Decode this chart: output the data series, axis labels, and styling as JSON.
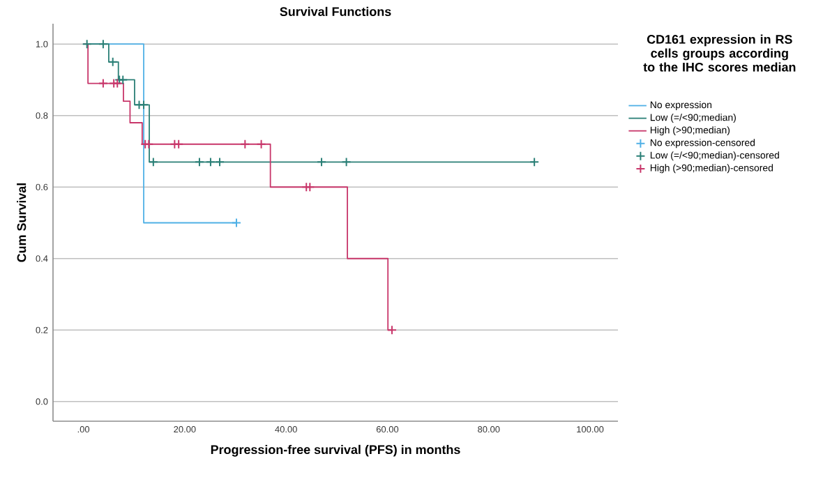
{
  "chart_data": {
    "type": "step",
    "title": "Survival Functions",
    "xlabel": "Progression-free survival (PFS) in months",
    "ylabel": "Cum Survival",
    "legend_title": "CD161 expression in RS cells groups according to the IHC scores median",
    "xlim": [
      -6,
      105.5
    ],
    "ylim": [
      -0.055,
      1.057
    ],
    "xticks": [
      {
        "value": 0,
        "label": ".00"
      },
      {
        "value": 20,
        "label": "20.00"
      },
      {
        "value": 40,
        "label": "40.00"
      },
      {
        "value": 60,
        "label": "60.00"
      },
      {
        "value": 80,
        "label": "80.00"
      },
      {
        "value": 100,
        "label": "100.00"
      }
    ],
    "yticks": [
      {
        "value": 0,
        "label": "0.0"
      },
      {
        "value": 0.2,
        "label": "0.2"
      },
      {
        "value": 0.4,
        "label": "0.4"
      },
      {
        "value": 0.6,
        "label": "0.6"
      },
      {
        "value": 0.8,
        "label": "0.8"
      },
      {
        "value": 1,
        "label": "1.0"
      }
    ],
    "grid": "y",
    "legend": "right",
    "series": [
      {
        "name": "No expression",
        "color": "#4fb0e6",
        "x": [
          0,
          11.9,
          30.2
        ],
        "values": [
          1,
          0.5,
          0.5
        ]
      },
      {
        "name": "Low (=/<90;median)",
        "color": "#2a7f76",
        "x": [
          0,
          5.0,
          6.9,
          10.1,
          13.0,
          89.0
        ],
        "values": [
          1,
          0.95,
          0.9,
          0.83,
          0.67,
          0.67
        ]
      },
      {
        "name": "High (>90;median)",
        "color": "#c8366a",
        "x": [
          0,
          0.9,
          7.9,
          9.2,
          11.6,
          36.9,
          52.1,
          60.1,
          60.9
        ],
        "values": [
          1,
          0.89,
          0.84,
          0.78,
          0.72,
          0.6,
          0.4,
          0.2,
          0.2
        ]
      },
      {
        "name": "No expression-censored",
        "type": "scatter",
        "marker": "cross",
        "color": "#4fb0e6",
        "x": [
          30.2
        ],
        "values": [
          0.5
        ]
      },
      {
        "name": "Low (=/<90;median)-censored",
        "type": "scatter",
        "marker": "cross",
        "color": "#2a7f76",
        "x": [
          0.7,
          3.9,
          5.8,
          7.1,
          7.8,
          11.0,
          11.9,
          13.8,
          22.9,
          25.1,
          26.9,
          47.0,
          51.9,
          89.0
        ],
        "values": [
          1,
          1,
          0.95,
          0.9,
          0.9,
          0.83,
          0.83,
          0.67,
          0.67,
          0.67,
          0.67,
          0.67,
          0.67,
          0.67
        ]
      },
      {
        "name": "High (>90;median)-censored",
        "type": "scatter",
        "marker": "cross",
        "color": "#c8366a",
        "x": [
          3.9,
          6.0,
          6.7,
          12.2,
          12.9,
          18.0,
          18.8,
          31.9,
          35.1,
          44.0,
          44.7,
          60.9
        ],
        "values": [
          0.89,
          0.89,
          0.89,
          0.72,
          0.72,
          0.72,
          0.72,
          0.72,
          0.72,
          0.6,
          0.6,
          0.2
        ]
      }
    ]
  }
}
